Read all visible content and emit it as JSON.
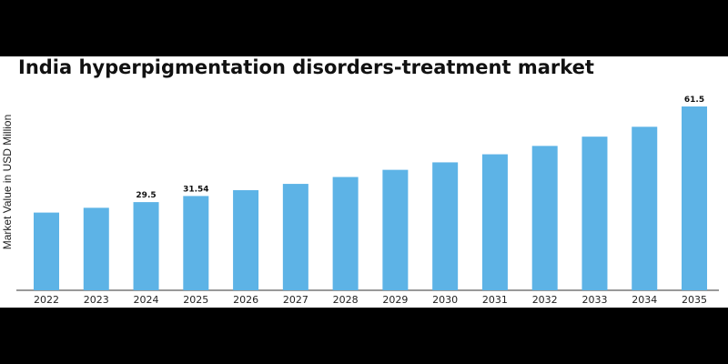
{
  "chart_data": {
    "type": "bar",
    "title": "India hyperpigmentation disorders-treatment market",
    "ylabel": "Market Value in USD Million",
    "xlabel": "",
    "categories": [
      "2022",
      "2023",
      "2024",
      "2025",
      "2026",
      "2027",
      "2028",
      "2029",
      "2030",
      "2031",
      "2032",
      "2033",
      "2034",
      "2035"
    ],
    "values": [
      26.0,
      27.6,
      29.5,
      31.54,
      33.5,
      35.6,
      37.9,
      40.3,
      42.8,
      45.5,
      48.3,
      51.4,
      54.7,
      61.5
    ],
    "data_labels": {
      "2024": "29.5",
      "2025": "31.54",
      "2035": "61.5"
    },
    "ylim": [
      0,
      61.5
    ],
    "bar_color": "#5db3e6",
    "grid": false,
    "legend": "none"
  }
}
